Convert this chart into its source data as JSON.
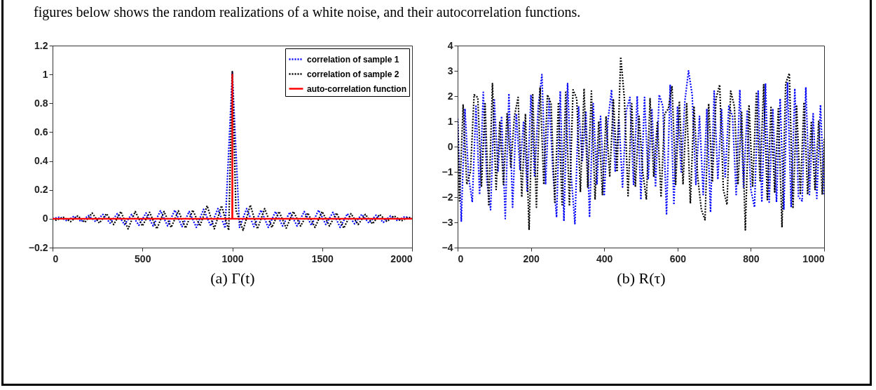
{
  "chart_data": [
    {
      "type": "line",
      "annotations": [
        "figures below shows the random realizations of a white noise, and their autocorrelation functions."
      ],
      "xlabel": "(a) Γ(t)",
      "xlim": [
        0,
        2000
      ],
      "xticks": [
        0,
        500,
        1000,
        1500,
        2000
      ],
      "ylim": [
        -0.2,
        1.2
      ],
      "yticks": [
        -0.2,
        0,
        0.2,
        0.4,
        0.6,
        0.8,
        1,
        1.2
      ],
      "grid": false,
      "legend": "top right",
      "series": [
        {
          "name": "correlation of sample 1",
          "color": "#0000ff",
          "line_style": "dotted",
          "x": [
            0,
            40,
            80,
            120,
            160,
            200,
            240,
            280,
            320,
            360,
            400,
            440,
            480,
            520,
            560,
            600,
            640,
            680,
            720,
            760,
            800,
            840,
            880,
            920,
            960,
            1000,
            1040,
            1080,
            1120,
            1160,
            1200,
            1240,
            1280,
            1320,
            1360,
            1400,
            1440,
            1480,
            1520,
            1560,
            1600,
            1640,
            1680,
            1720,
            1760,
            1800,
            1840,
            1880,
            1920,
            1960,
            2000
          ],
          "values": [
            0,
            0.012,
            -0.015,
            0.018,
            -0.02,
            0.022,
            -0.02,
            0.03,
            -0.03,
            0.035,
            -0.04,
            0.03,
            -0.045,
            0.04,
            -0.05,
            0.055,
            -0.05,
            0.06,
            -0.055,
            0.05,
            -0.06,
            0.065,
            -0.05,
            0.07,
            -0.065,
            1.01,
            -0.06,
            0.07,
            -0.055,
            0.06,
            -0.06,
            0.05,
            -0.05,
            0.045,
            -0.05,
            0.05,
            -0.045,
            0.06,
            -0.04,
            0.045,
            -0.06,
            0.035,
            -0.035,
            0.03,
            -0.03,
            0.025,
            -0.025,
            0.02,
            -0.015,
            0.015,
            0
          ]
        },
        {
          "name": "correlation of sample 2",
          "color": "#000000",
          "line_style": "dotted",
          "x": [
            0,
            20,
            60,
            100,
            140,
            180,
            220,
            260,
            300,
            340,
            380,
            420,
            460,
            500,
            540,
            580,
            620,
            660,
            700,
            740,
            780,
            820,
            860,
            900,
            940,
            980,
            1000,
            1020,
            1060,
            1100,
            1140,
            1180,
            1220,
            1260,
            1300,
            1340,
            1380,
            1420,
            1460,
            1500,
            1540,
            1580,
            1620,
            1660,
            1700,
            1740,
            1780,
            1820,
            1860,
            1900,
            1940,
            1980,
            2000
          ],
          "values": [
            0,
            -0.01,
            0.01,
            -0.02,
            0.02,
            -0.025,
            0.04,
            -0.03,
            0.035,
            -0.04,
            0.05,
            -0.07,
            0.05,
            -0.05,
            0.045,
            -0.07,
            0.05,
            -0.06,
            0.055,
            -0.065,
            0.06,
            -0.05,
            0.09,
            -0.07,
            0.09,
            -0.08,
            1.02,
            0.06,
            -0.08,
            0.095,
            -0.07,
            0.07,
            -0.06,
            0.05,
            -0.065,
            0.05,
            -0.05,
            0.04,
            -0.06,
            0.05,
            -0.05,
            0.04,
            -0.065,
            0.035,
            -0.04,
            0.03,
            -0.035,
            0.03,
            -0.02,
            0.02,
            -0.015,
            0.01,
            0
          ]
        },
        {
          "name": "auto-correlation function",
          "color": "#ff0000",
          "line_style": "solid",
          "x": [
            0,
            999,
            1000,
            1001,
            2000
          ],
          "values": [
            0,
            0,
            1,
            0,
            0
          ]
        }
      ]
    },
    {
      "type": "line",
      "xlabel": "(b) R(τ)",
      "xlim": [
        0,
        1000
      ],
      "xticks": [
        0,
        200,
        400,
        600,
        800,
        1000
      ],
      "ylim": [
        -4,
        4
      ],
      "yticks": [
        -4,
        -3,
        -2,
        -1,
        0,
        1,
        2,
        3,
        4
      ],
      "grid": false,
      "legend": false,
      "series": [
        {
          "color": "#0000ff",
          "line_style": "dotted",
          "x": [
            0,
            10,
            20,
            30,
            40,
            50,
            60,
            70,
            80,
            90,
            100,
            110,
            120,
            130,
            140,
            150,
            160,
            170,
            180,
            190,
            200,
            210,
            220,
            230,
            240,
            250,
            260,
            270,
            280,
            290,
            300,
            310,
            320,
            330,
            340,
            350,
            360,
            370,
            380,
            390,
            400,
            410,
            420,
            430,
            440,
            450,
            460,
            470,
            480,
            490,
            500,
            510,
            520,
            530,
            540,
            550,
            560,
            570,
            580,
            590,
            600,
            610,
            620,
            630,
            640,
            650,
            660,
            670,
            680,
            690,
            700,
            710,
            720,
            730,
            740,
            750,
            760,
            770,
            780,
            790,
            800,
            810,
            820,
            830,
            840,
            850,
            860,
            870,
            880,
            890,
            900,
            910,
            920,
            930,
            940,
            950,
            960,
            970,
            980,
            990,
            1000
          ],
          "values": [
            1.1,
            -2.95,
            1.5,
            -1.2,
            -2.2,
            1.6,
            -1.9,
            2.15,
            -1.4,
            -2.5,
            1.9,
            -1.0,
            1.2,
            -2.85,
            2.1,
            -2.4,
            1.3,
            -0.9,
            1.0,
            -1.8,
            2.05,
            -1.2,
            1.6,
            2.85,
            -1.5,
            1.9,
            -1.0,
            -2.8,
            2.2,
            -2.95,
            2.5,
            -1.2,
            -3.05,
            1.6,
            -0.6,
            1.4,
            -2.8,
            1.7,
            -1.5,
            1.2,
            -1.95,
            1.0,
            2.25,
            -1.0,
            1.1,
            -1.6,
            1.4,
            1.95,
            -1.5,
            2.0,
            -2.1,
            1.95,
            -1.3,
            1.5,
            -1.6,
            2.05,
            1.6,
            -2.7,
            2.45,
            -2.3,
            1.6,
            -1.0,
            1.8,
            3.0,
            2.05,
            -1.5,
            1.2,
            -1.9,
            1.5,
            -2.6,
            2.2,
            -1.3,
            1.5,
            -1.2,
            1.6,
            1.2,
            -1.9,
            2.25,
            -1.6,
            1.4,
            -1.7,
            -2.4,
            2.2,
            -2.2,
            2.5,
            -2.2,
            1.5,
            -2.2,
            1.9,
            -2.5,
            2.55,
            -2.4,
            2.3,
            -2.0,
            -2.15,
            2.35,
            -1.9,
            1.3,
            -2.05,
            1.65,
            -1.95
          ]
        },
        {
          "color": "#000000",
          "line_style": "dotted",
          "x": [
            0,
            5,
            15,
            25,
            35,
            45,
            55,
            65,
            75,
            85,
            95,
            105,
            115,
            125,
            135,
            145,
            155,
            165,
            175,
            185,
            195,
            205,
            215,
            225,
            235,
            245,
            255,
            265,
            275,
            285,
            295,
            305,
            315,
            325,
            335,
            345,
            355,
            365,
            375,
            385,
            395,
            405,
            415,
            425,
            435,
            445,
            455,
            465,
            475,
            485,
            495,
            505,
            515,
            525,
            535,
            545,
            555,
            565,
            575,
            585,
            595,
            605,
            615,
            625,
            635,
            645,
            655,
            665,
            675,
            685,
            695,
            705,
            715,
            725,
            735,
            745,
            755,
            765,
            775,
            785,
            795,
            805,
            815,
            825,
            835,
            845,
            855,
            865,
            875,
            885,
            895,
            905,
            915,
            925,
            935,
            945,
            955,
            965,
            975,
            985,
            995,
            1000
          ],
          "values": [
            1.1,
            -2.15,
            1.65,
            -1.5,
            -1.0,
            2.05,
            1.95,
            -1.6,
            1.7,
            -2.35,
            2.5,
            -1.7,
            1.0,
            -1.5,
            1.3,
            -0.8,
            1.2,
            1.95,
            -2.0,
            1.3,
            -3.3,
            2.05,
            -2.4,
            2.35,
            -1.5,
            2.05,
            1.7,
            -2.2,
            1.75,
            -2.3,
            2.15,
            -2.35,
            2.25,
            1.9,
            -1.8,
            2.3,
            -1.6,
            2.2,
            -2.1,
            1.0,
            -1.9,
            1.2,
            -1.2,
            1.85,
            -1.0,
            3.55,
            1.9,
            -1.95,
            1.7,
            -1.6,
            1.2,
            -1.0,
            -2.1,
            1.9,
            -1.2,
            1.0,
            -2.0,
            1.3,
            1.5,
            2.4,
            -1.5,
            1.8,
            -1.5,
            1.7,
            -2.25,
            1.6,
            -1.2,
            -2.5,
            -2.9,
            1.7,
            -1.4,
            1.9,
            2.45,
            -1.7,
            -2.3,
            2.2,
            1.6,
            -1.5,
            1.4,
            -3.3,
            1.65,
            -1.6,
            2.1,
            -1.4,
            2.45,
            -2.1,
            1.55,
            -1.8,
            1.5,
            -3.2,
            2.5,
            2.9,
            -2.45,
            1.6,
            -1.9,
            1.75,
            -1.9,
            1.0,
            -1.7,
            1.0,
            -1.9,
            0.3
          ]
        }
      ]
    }
  ]
}
